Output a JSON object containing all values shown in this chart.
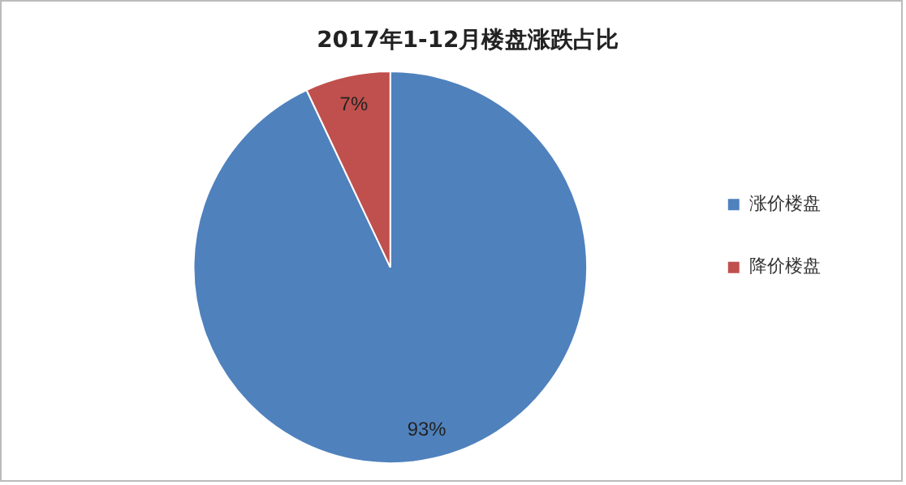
{
  "chart_data": {
    "type": "pie",
    "title": "2017年1-12月楼盘涨跌占比",
    "categories": [
      "涨价楼盘",
      "降价楼盘"
    ],
    "values": [
      93,
      7
    ],
    "value_labels": [
      "93%",
      "7%"
    ],
    "colors": [
      "#4f81bd",
      "#c0504d"
    ],
    "legend": "right"
  }
}
